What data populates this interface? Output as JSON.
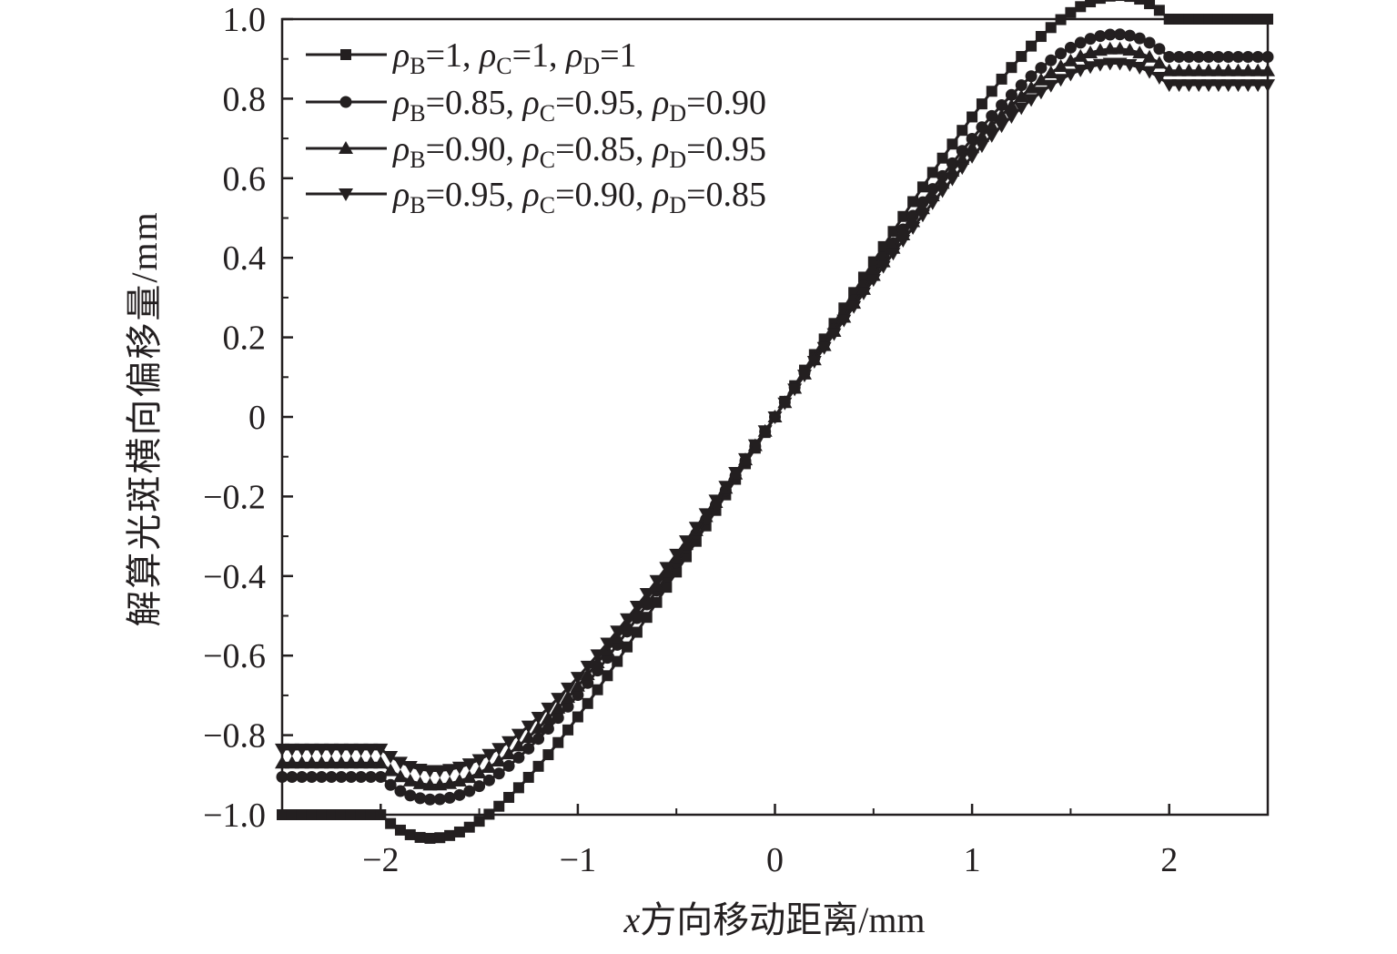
{
  "chart_data": {
    "type": "line",
    "title": "",
    "xlabel": "x方向移动距离/mm",
    "xlabel_var": "x",
    "xlabel_rest": "方向移动距离/mm",
    "ylabel": "解算光斑横向偏移量/mm",
    "xlim": [
      -2.5,
      2.5
    ],
    "ylim": [
      -1.0,
      1.0
    ],
    "xticks": [
      -2,
      -1,
      0,
      1,
      2
    ],
    "xtick_labels": [
      "−2",
      "−1",
      "0",
      "1",
      "2"
    ],
    "yticks": [
      -1.0,
      -0.8,
      -0.6,
      -0.4,
      -0.2,
      0,
      0.2,
      0.4,
      0.6,
      0.8,
      1.0
    ],
    "ytick_labels": [
      "−1.0",
      "−0.8",
      "−0.6",
      "−0.4",
      "−0.2",
      "0",
      "0.2",
      "0.4",
      "0.6",
      "0.8",
      "1.0"
    ],
    "grid": false,
    "legend_position": "top-left",
    "x_start": -2.5,
    "x_end": 2.5,
    "x_step": 0.05,
    "x_transition_start": -2.0,
    "x_transition_end": 2.0,
    "series": [
      {
        "key": "s1",
        "marker": "square",
        "saturation": 1.0,
        "slope_at_zero": 0.785,
        "legend": [
          [
            "ρ",
            "B",
            "=1, "
          ],
          [
            "ρ",
            "C",
            "=1, "
          ],
          [
            "ρ",
            "D",
            "=1"
          ]
        ]
      },
      {
        "key": "s2",
        "marker": "circle",
        "saturation": 0.905,
        "slope_at_zero": 0.74,
        "legend": [
          [
            "ρ",
            "B",
            "=0.85, "
          ],
          [
            "ρ",
            "C",
            "=0.95, "
          ],
          [
            "ρ",
            "D",
            "=0.90"
          ]
        ]
      },
      {
        "key": "s3",
        "marker": "triangle-up",
        "saturation": 0.87,
        "slope_at_zero": 0.72,
        "legend": [
          [
            "ρ",
            "B",
            "=0.90, "
          ],
          [
            "ρ",
            "C",
            "=0.85, "
          ],
          [
            "ρ",
            "D",
            "=0.95"
          ]
        ]
      },
      {
        "key": "s4",
        "marker": "triangle-down",
        "saturation": 0.835,
        "slope_at_zero": 0.7,
        "legend": [
          [
            "ρ",
            "B",
            "=0.95, "
          ],
          [
            "ρ",
            "C",
            "=0.90, "
          ],
          [
            "ρ",
            "D",
            "=0.85"
          ]
        ]
      }
    ]
  },
  "colors": {
    "ink": "#231f20",
    "background": "#ffffff"
  }
}
